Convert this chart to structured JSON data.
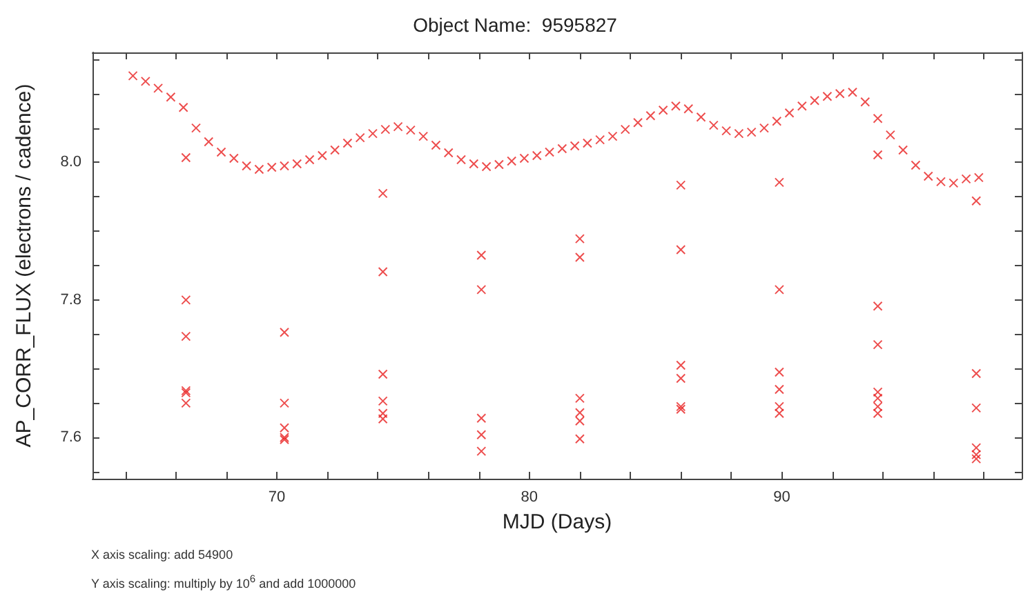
{
  "chart_data": {
    "type": "scatter",
    "title": "Object Name:  9595827",
    "xlabel": "MJD (Days)",
    "ylabel": "AP_CORR_FLUX (electrons / cadence)",
    "annotations": [
      "X axis scaling: add 54900",
      "Y axis scaling: multiply by 10$^{6}$ and add 1000000"
    ],
    "xlim": [
      62.7,
      99.5
    ],
    "ylim": [
      7.54,
      8.16
    ],
    "xticks": [
      {
        "value": 64,
        "label": null
      },
      {
        "value": 66,
        "label": null
      },
      {
        "value": 68,
        "label": null
      },
      70,
      {
        "value": 72,
        "label": null
      },
      {
        "value": 74,
        "label": null
      },
      {
        "value": 76,
        "label": null
      },
      {
        "value": 78,
        "label": null
      },
      80,
      {
        "value": 82,
        "label": null
      },
      {
        "value": 84,
        "label": null
      },
      {
        "value": 86,
        "label": null
      },
      {
        "value": 88,
        "label": null
      },
      90,
      {
        "value": 92,
        "label": null
      },
      {
        "value": 94,
        "label": null
      },
      {
        "value": 96,
        "label": null
      },
      {
        "value": 98,
        "label": null
      }
    ],
    "yticks": [
      {
        "value": 7.55,
        "label": null
      },
      7.6,
      {
        "value": 7.65,
        "label": null
      },
      {
        "value": 7.7,
        "label": null
      },
      {
        "value": 7.75,
        "label": null
      },
      7.8,
      {
        "value": 7.85,
        "label": null
      },
      {
        "value": 7.9,
        "label": null
      },
      {
        "value": 7.95,
        "label": null
      },
      {
        "value": 8,
        "label": "8.0"
      },
      {
        "value": 8.05,
        "label": null
      },
      {
        "value": 8.1,
        "label": null
      },
      {
        "value": 8.15,
        "label": null
      }
    ],
    "grid": false,
    "marker": "cross",
    "series": [
      {
        "color": "#e82020",
        "x": [
          64.3,
          64.8,
          65.3,
          65.8,
          66.3,
          66.8,
          67.3,
          67.8,
          68.3,
          68.8,
          69.3,
          69.8,
          70.3,
          70.8,
          71.3,
          71.8,
          72.3,
          72.8,
          73.3,
          73.8,
          74.3,
          74.8,
          75.3,
          75.8,
          76.3,
          76.8,
          77.3,
          77.8,
          78.3,
          78.8,
          79.3,
          79.8,
          80.3,
          80.8,
          81.3,
          81.8,
          82.3,
          82.8,
          83.3,
          83.8,
          84.3,
          84.8,
          85.3,
          85.8,
          86.3,
          86.8,
          87.3,
          87.8,
          88.3,
          88.8,
          89.3,
          89.8,
          90.3,
          90.8,
          91.3,
          91.8,
          92.3,
          92.8,
          93.3,
          93.8,
          94.3,
          94.8,
          95.3,
          95.8,
          96.3,
          96.8,
          97.3,
          97.8,
          66.4,
          66.4,
          66.4,
          66.4,
          66.4,
          66.4,
          70.3,
          70.3,
          70.3,
          70.3,
          70.3,
          74.2,
          74.2,
          74.2,
          74.2,
          74.2,
          74.2,
          78.1,
          78.1,
          78.1,
          78.1,
          78.1,
          82.0,
          82.0,
          82.0,
          82.0,
          82.0,
          82.0,
          86.0,
          86.0,
          86.0,
          86.0,
          86.0,
          86.0,
          89.9,
          89.9,
          89.9,
          89.9,
          89.9,
          89.9,
          93.8,
          93.8,
          93.8,
          93.8,
          93.8,
          93.8,
          93.8,
          97.7,
          97.7,
          97.7,
          97.7,
          97.7,
          97.7
        ],
        "values": [
          8.126,
          8.118,
          8.108,
          8.095,
          8.08,
          8.05,
          8.03,
          8.015,
          8.006,
          7.995,
          7.99,
          7.993,
          7.995,
          7.998,
          8.004,
          8.01,
          8.018,
          8.028,
          8.036,
          8.042,
          8.048,
          8.052,
          8.047,
          8.038,
          8.025,
          8.014,
          8.004,
          7.998,
          7.994,
          7.997,
          8.002,
          8.006,
          8.01,
          8.015,
          8.02,
          8.024,
          8.028,
          8.033,
          8.038,
          8.048,
          8.058,
          8.068,
          8.076,
          8.082,
          8.078,
          8.066,
          8.054,
          8.046,
          8.042,
          8.044,
          8.05,
          8.06,
          8.072,
          8.082,
          8.09,
          8.096,
          8.1,
          8.102,
          8.088,
          8.064,
          8.04,
          8.018,
          7.996,
          7.98,
          7.972,
          7.97,
          7.976,
          7.978,
          8.007,
          7.8,
          7.747,
          7.668,
          7.665,
          7.65,
          7.753,
          7.65,
          7.614,
          7.6,
          7.597,
          7.955,
          7.841,
          7.692,
          7.653,
          7.635,
          7.627,
          7.865,
          7.815,
          7.628,
          7.604,
          7.58,
          7.889,
          7.862,
          7.657,
          7.636,
          7.624,
          7.598,
          7.967,
          7.873,
          7.705,
          7.686,
          7.645,
          7.641,
          7.971,
          7.815,
          7.695,
          7.67,
          7.645,
          7.635,
          8.011,
          7.791,
          7.735,
          7.666,
          7.657,
          7.645,
          7.635,
          7.944,
          7.693,
          7.643,
          7.585,
          7.575,
          7.569
        ]
      }
    ]
  }
}
